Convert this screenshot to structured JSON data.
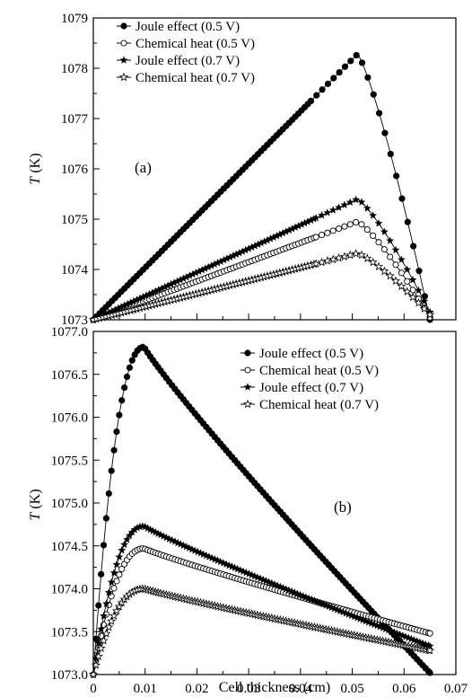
{
  "chart_data": [
    {
      "panel": "(a)",
      "type": "scatter",
      "xlabel": "",
      "ylabel_var": "T",
      "ylabel_unit": " (K)",
      "xlim": [
        0,
        0.07
      ],
      "ylim": [
        1073,
        1079
      ],
      "yticks": [
        "1073",
        "1074",
        "1075",
        "1076",
        "1077",
        "1078",
        "1079"
      ],
      "xticks": [],
      "legend_position": "top-left",
      "peak_x": 0.051,
      "x_end": 0.065,
      "series": [
        {
          "name": "Joule effect (0.5 V)",
          "marker": "filled-circle",
          "peak": 1078.28,
          "end": 1073.0,
          "dense_start": 0.042
        },
        {
          "name": "Chemical heat (0.5 V)",
          "marker": "open-circle",
          "peak": 1074.95,
          "end": 1073.05,
          "dense_start": 0.043
        },
        {
          "name": "Joule effect (0.7 V)",
          "marker": "filled-star",
          "peak": 1075.4,
          "end": 1073.15,
          "dense_start": 0.043
        },
        {
          "name": "Chemical heat (0.7 V)",
          "marker": "open-star",
          "peak": 1074.32,
          "end": 1073.1,
          "dense_start": 0.043
        }
      ]
    },
    {
      "panel": "(b)",
      "type": "scatter",
      "xlabel": "Cell thickness (cm)",
      "ylabel_var": "T",
      "ylabel_unit": " (K)",
      "xlim": [
        0,
        0.07
      ],
      "ylim": [
        1073,
        1077
      ],
      "yticks": [
        "1073.0",
        "1073.5",
        "1074.0",
        "1074.5",
        "1075.0",
        "1075.5",
        "1076.0",
        "1076.5",
        "1077.0"
      ],
      "xticks": [
        "0",
        "0.01",
        "0.02",
        "0.03",
        "0.04",
        "0.05",
        "0.06",
        "0.07"
      ],
      "legend_position": "top-right",
      "peak_x": 0.0098,
      "x_end": 0.065,
      "series": [
        {
          "name": "Joule effect (0.5 V)",
          "marker": "filled-circle",
          "peak": 1076.82,
          "end": 1073.02
        },
        {
          "name": "Chemical heat (0.5 V)",
          "marker": "open-circle",
          "peak": 1074.47,
          "end": 1073.48
        },
        {
          "name": "Joule effect (0.7 V)",
          "marker": "filled-star",
          "peak": 1074.73,
          "end": 1073.33
        },
        {
          "name": "Chemical heat (0.7 V)",
          "marker": "open-star",
          "peak": 1074.0,
          "end": 1073.28
        }
      ]
    }
  ]
}
